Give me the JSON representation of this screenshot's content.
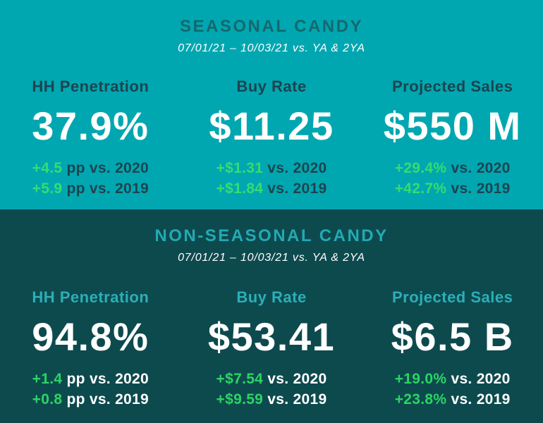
{
  "colors": {
    "seasonal_background": "#00A7B0",
    "nonseasonal_background": "#0D4A4E",
    "seasonal_title": "#15686E",
    "seasonal_label_text": "#1B4450",
    "nonseasonal_accent": "#23AAB3",
    "positive_green": "#2FD968",
    "value_white": "#FFFFFF"
  },
  "sections": [
    {
      "id": "seasonal",
      "title": "SEASONAL CANDY",
      "subtitle": "07/01/21 – 10/03/21 vs. YA & 2YA",
      "metrics": [
        {
          "label": "HH Penetration",
          "value": "37.9%",
          "changes": [
            {
              "delta": "+4.5",
              "rest": " pp vs. 2020"
            },
            {
              "delta": "+5.9",
              "rest": " pp vs. 2019"
            }
          ]
        },
        {
          "label": "Buy Rate",
          "value": "$11.25",
          "changes": [
            {
              "delta": "+$1.31",
              "rest": " vs. 2020"
            },
            {
              "delta": "+$1.84",
              "rest": " vs. 2019"
            }
          ]
        },
        {
          "label": "Projected Sales",
          "value": "$550 M",
          "changes": [
            {
              "delta": "+29.4%",
              "rest": " vs. 2020"
            },
            {
              "delta": "+42.7%",
              "rest": " vs. 2019"
            }
          ]
        }
      ]
    },
    {
      "id": "non-seasonal",
      "title": "NON-SEASONAL CANDY",
      "subtitle": "07/01/21 – 10/03/21 vs. YA & 2YA",
      "metrics": [
        {
          "label": "HH Penetration",
          "value": "94.8%",
          "changes": [
            {
              "delta": "+1.4",
              "rest": " pp vs. 2020"
            },
            {
              "delta": "+0.8",
              "rest": " pp vs. 2019"
            }
          ]
        },
        {
          "label": "Buy Rate",
          "value": "$53.41",
          "changes": [
            {
              "delta": "+$7.54",
              "rest": " vs. 2020"
            },
            {
              "delta": "+$9.59",
              "rest": " vs. 2019"
            }
          ]
        },
        {
          "label": "Projected Sales",
          "value": "$6.5 B",
          "changes": [
            {
              "delta": "+19.0%",
              "rest": " vs. 2020"
            },
            {
              "delta": "+23.8%",
              "rest": " vs. 2019"
            }
          ]
        }
      ]
    }
  ],
  "chart_data": [
    {
      "type": "table",
      "title": "SEASONAL CANDY",
      "subtitle": "07/01/21 – 10/03/21 vs. YA & 2YA",
      "columns": [
        "HH Penetration",
        "Buy Rate",
        "Projected Sales"
      ],
      "current_values": [
        "37.9%",
        "$11.25",
        "$550 M"
      ],
      "vs_2020": [
        "+4.5 pp",
        "+$1.31",
        "+29.4%"
      ],
      "vs_2019": [
        "+5.9 pp",
        "+$1.84",
        "+42.7%"
      ]
    },
    {
      "type": "table",
      "title": "NON-SEASONAL CANDY",
      "subtitle": "07/01/21 – 10/03/21 vs. YA & 2YA",
      "columns": [
        "HH Penetration",
        "Buy Rate",
        "Projected Sales"
      ],
      "current_values": [
        "94.8%",
        "$53.41",
        "$6.5 B"
      ],
      "vs_2020": [
        "+1.4 pp",
        "+$7.54",
        "+19.0%"
      ],
      "vs_2019": [
        "+0.8 pp",
        "+$9.59",
        "+23.8%"
      ]
    }
  ]
}
